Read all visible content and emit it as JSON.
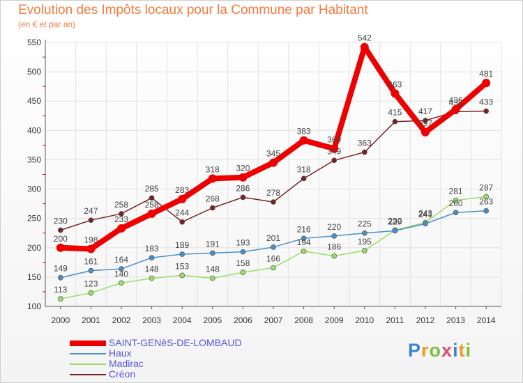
{
  "header": {
    "title": "Evolution des Impôts locaux pour la Commune par Habitant",
    "subtitle": "(en € et par an)"
  },
  "logo": {
    "text": "Proxiti",
    "letters": [
      "P",
      "r",
      "o",
      "x",
      "i",
      "t",
      "i"
    ],
    "colors": [
      "#3a86d0",
      "#f39a1e",
      "#7cc142",
      "#e34a6f",
      "#3a86d0",
      "#f39a1e",
      "#7cc142"
    ]
  },
  "chart_data": {
    "type": "line",
    "title": "Evolution des Impôts locaux pour la Commune par Habitant",
    "subtitle": "(en € et par an)",
    "x": [
      "2000",
      "2001",
      "2002",
      "2003",
      "2004",
      "2005",
      "2006",
      "2007",
      "2008",
      "2009",
      "2010",
      "2011",
      "2012",
      "2013",
      "2014"
    ],
    "ylim": [
      100,
      550
    ],
    "yticks": [
      100,
      150,
      200,
      250,
      300,
      350,
      400,
      450,
      500,
      550
    ],
    "grid": true,
    "legend_position": "bottom-left",
    "series": [
      {
        "name": "SAINT-GENèS-DE-LOMBAUD",
        "color": "#ee0000",
        "values": [
          200,
          198,
          233,
          258,
          283,
          318,
          320,
          345,
          383,
          369,
          542,
          463,
          397,
          436,
          481
        ]
      },
      {
        "name": "Haux",
        "color": "#4a90c8",
        "values": [
          149,
          161,
          164,
          183,
          189,
          191,
          193,
          201,
          216,
          220,
          225,
          229,
          241,
          260,
          263
        ]
      },
      {
        "name": "Madirac",
        "color": "#99dd66",
        "values": [
          113,
          123,
          140,
          148,
          153,
          148,
          158,
          166,
          194,
          186,
          195,
          230,
          243,
          281,
          287
        ]
      },
      {
        "name": "Créon",
        "color": "#772222",
        "values": [
          230,
          247,
          258,
          285,
          244,
          268,
          286,
          278,
          318,
          349,
          363,
          415,
          417,
          432,
          433
        ]
      }
    ]
  }
}
